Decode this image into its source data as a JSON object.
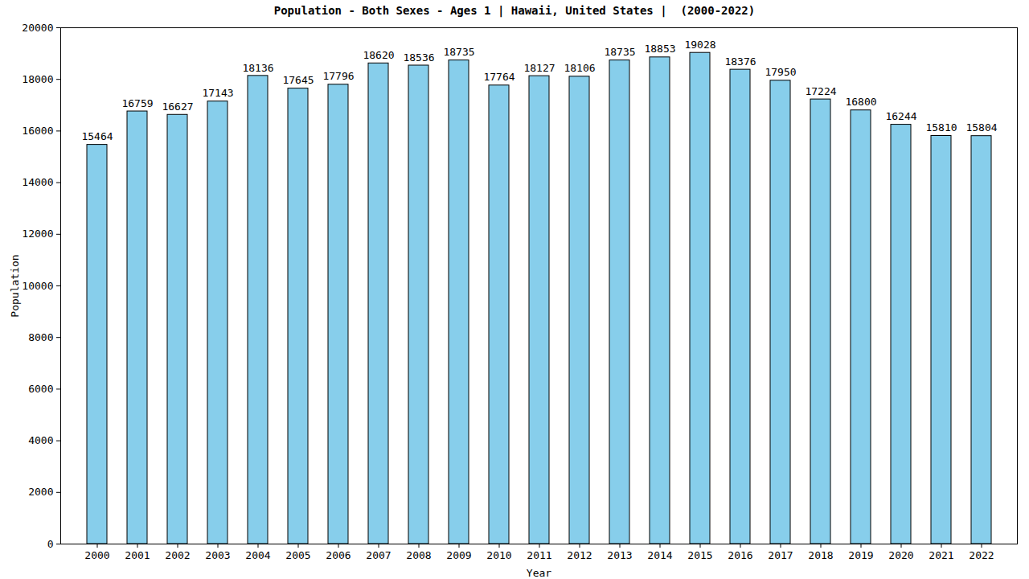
{
  "chart_data": {
    "type": "bar",
    "title": "Population - Both Sexes - Ages 1 | Hawaii, United States |  (2000-2022)",
    "x_label": "Year",
    "y_label": "Population",
    "categories": [
      "2000",
      "2001",
      "2002",
      "2003",
      "2004",
      "2005",
      "2006",
      "2007",
      "2008",
      "2009",
      "2010",
      "2011",
      "2012",
      "2013",
      "2014",
      "2015",
      "2016",
      "2017",
      "2018",
      "2019",
      "2020",
      "2021",
      "2022"
    ],
    "values": [
      15464,
      16759,
      16627,
      17143,
      18136,
      17645,
      17796,
      18620,
      18536,
      18735,
      17764,
      18127,
      18106,
      18735,
      18853,
      19028,
      18376,
      17950,
      17224,
      16800,
      16244,
      15810,
      15804
    ],
    "color": "#87ceeb",
    "ylim": [
      0,
      20000
    ],
    "yticks": [
      0,
      2000,
      4000,
      6000,
      8000,
      10000,
      12000,
      14000,
      16000,
      18000,
      20000
    ],
    "grid": false,
    "data_labels": true
  }
}
